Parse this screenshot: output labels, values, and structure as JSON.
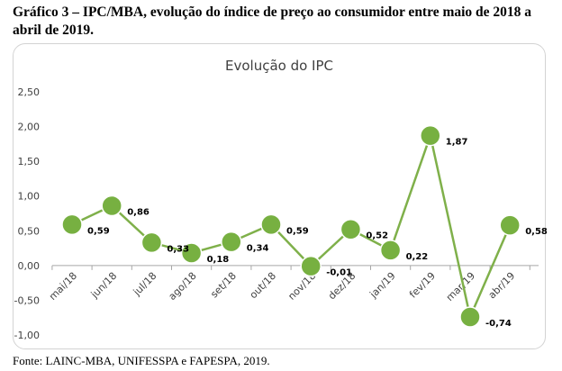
{
  "page": {
    "heading": "Gráfico 3 – IPC/MBA, evolução do índice de preço ao consumidor entre maio de 2018 a abril de 2019.",
    "source": "Fonte: LAINC-MBA, UNIFESSPA e FAPESPA, 2019."
  },
  "chart_data": {
    "type": "line",
    "title": "Evolução do IPC",
    "xlabel": "",
    "ylabel": "",
    "categories": [
      "mai/18",
      "jun/18",
      "jul/18",
      "ago/18",
      "set/18",
      "out/18",
      "nov/18",
      "dez/18",
      "jan/19",
      "fev/19",
      "mar/19",
      "abr/19"
    ],
    "series": [
      {
        "name": "IPC",
        "values": [
          0.59,
          0.86,
          0.33,
          0.18,
          0.34,
          0.59,
          -0.01,
          0.52,
          0.22,
          1.87,
          -0.74,
          0.58
        ]
      }
    ],
    "data_labels": [
      "0,59",
      "0,86",
      "0,33",
      "0,18",
      "0,34",
      "0,59",
      "-0,01",
      "0,52",
      "0,22",
      "1,87",
      "-0,74",
      "0,58"
    ],
    "yticks": [
      2.5,
      2.0,
      1.5,
      1.0,
      0.5,
      0.0,
      -0.5,
      -1.0
    ],
    "ytick_labels": [
      "2,50",
      "2,00",
      "1,50",
      "1,00",
      "0,50",
      "0,00",
      "-0,50",
      "-1,00"
    ],
    "ylim": [
      -1.0,
      2.5
    ],
    "grid": false,
    "legend": "none",
    "colors": {
      "line": "#7fb04a",
      "marker": "#77b041",
      "marker_edge": "#ffffff",
      "axis": "#a6a6a6",
      "text": "#404040"
    }
  }
}
